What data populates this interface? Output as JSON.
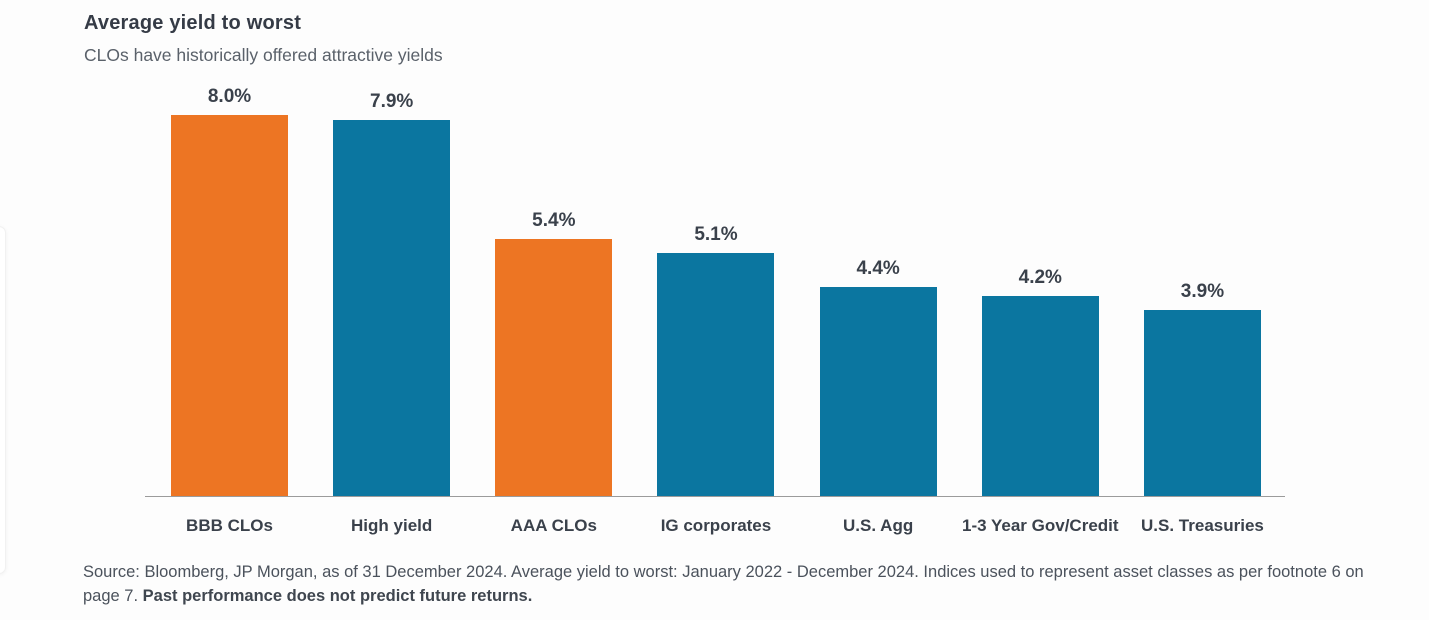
{
  "header": {
    "title": "Average yield to worst",
    "subtitle": "CLOs have historically offered attractive yields"
  },
  "chart_data": {
    "type": "bar",
    "title": "Average yield to worst",
    "subtitle": "CLOs have historically offered attractive yields",
    "categories": [
      "BBB CLOs",
      "High yield",
      "AAA CLOs",
      "IG corporates",
      "U.S. Agg",
      "1-3 Year Gov/Credit",
      "U.S. Treasuries"
    ],
    "values": [
      8.0,
      7.9,
      5.4,
      5.1,
      4.4,
      4.2,
      3.9
    ],
    "value_labels": [
      "8.0%",
      "7.9%",
      "5.4%",
      "5.1%",
      "4.4%",
      "4.2%",
      "3.9%"
    ],
    "bar_colors": [
      "#ED7523",
      "#0B76A0",
      "#ED7523",
      "#0B76A0",
      "#0B76A0",
      "#0B76A0",
      "#0B76A0"
    ],
    "unit": "%",
    "ylim": [
      0,
      8.66
    ],
    "grid": false,
    "legend": "none",
    "value_labels_position": "above-bars",
    "axis_line_color": "#9b9b9b"
  },
  "footer": {
    "source_text": "Source: Bloomberg, JP Morgan, as of 31 December 2024. Average yield to worst: January 2022 - December 2024. Indices used to represent asset classes as per footnote 6 on page 7. ",
    "bold_text": "Past performance does not predict future returns."
  },
  "colors": {
    "orange": "#ED7523",
    "blue": "#0B76A0",
    "title_text": "#353B46",
    "subtitle_text": "#5A616A",
    "label_text": "#3A414B",
    "footer_text": "#4B525C",
    "axis_line": "#9B9B9B"
  }
}
